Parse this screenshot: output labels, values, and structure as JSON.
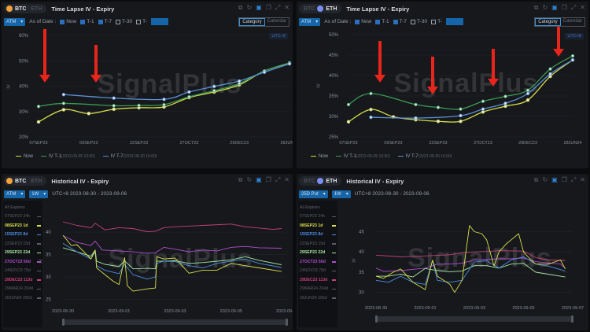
{
  "panels": [
    {
      "coin_active": "BTC",
      "coin_inactive": "ETH",
      "title": "Time Lapse IV - Expiry",
      "metric_select": "ATM",
      "as_of_label": "As of Date :",
      "checks": [
        {
          "label": "Now",
          "checked": true
        },
        {
          "label": "T-1",
          "checked": true
        },
        {
          "label": "T-7",
          "checked": true
        },
        {
          "label": "T-30",
          "checked": false
        },
        {
          "label": "T-",
          "checked": false
        }
      ],
      "view_toggle": [
        "Category",
        "Calendar"
      ],
      "timezone": "UTC+8",
      "y_axis_title": "IV",
      "watermark": "SignalPlus"
    },
    {
      "coin_active": "ETH",
      "coin_inactive": "BTC",
      "title": "Time Lapse IV - Expiry",
      "metric_select": "ATM",
      "as_of_label": "As of Date :",
      "checks": [
        {
          "label": "Now",
          "checked": true
        },
        {
          "label": "T-1",
          "checked": true
        },
        {
          "label": "T-7",
          "checked": true
        },
        {
          "label": "T-30",
          "checked": false
        },
        {
          "label": "T-",
          "checked": false
        }
      ],
      "view_toggle": [
        "Category",
        "Calendar"
      ],
      "timezone": "UTC+8",
      "y_axis_title": "IV",
      "watermark": "SignalPlus"
    },
    {
      "coin_active": "BTC",
      "coin_inactive": "ETH",
      "title": "Historical IV - Expiry",
      "metric_select": "ATM",
      "period_select": "1W",
      "range_label": "UTC+8 2023-08-30 - 2023-09-06",
      "expiries_header": "All Expiries",
      "y_axis_title": "IV",
      "watermark": "SignalPlus"
    },
    {
      "coin_active": "ETH",
      "coin_inactive": "BTC",
      "title": "Historical IV - Expiry",
      "metric_select": "25D Put",
      "period_select": "1W",
      "range_label": "UTC+8 2023-08-30 - 2023-09-06",
      "expiries_header": "All Expiries",
      "y_axis_title": "IV",
      "watermark": "SignalPlus"
    }
  ],
  "expiry_list": [
    {
      "label": "07SEP23 24h",
      "active": false,
      "color": "#5a5e66"
    },
    {
      "label": "08SEP23 1d",
      "active": true,
      "color": "#d9e04a"
    },
    {
      "label": "15SEP23 8d",
      "active": true,
      "color": "#4a8ee0"
    },
    {
      "label": "22SEP23 15d",
      "active": false,
      "color": "#5a5e66"
    },
    {
      "label": "29SEP23 22d",
      "active": true,
      "color": "#a8e6a0"
    },
    {
      "label": "27OCT23 50d",
      "active": true,
      "color": "#b04fd0"
    },
    {
      "label": "24NOV23 78d",
      "active": false,
      "color": "#5a5e66"
    },
    {
      "label": "29DEC23 113d",
      "active": true,
      "color": "#c8407a"
    },
    {
      "label": "29MAR24 204d",
      "active": false,
      "color": "#5a5e66"
    },
    {
      "label": "28JUN24 295d",
      "active": false,
      "color": "#5a5e66"
    }
  ],
  "chart_data": [
    {
      "type": "line",
      "title": "BTC Time Lapse IV - Expiry",
      "ylabel": "IV",
      "ylim": [
        20,
        60
      ],
      "yticks": [
        "20%",
        "30%",
        "40%",
        "50%",
        "60%"
      ],
      "ytick_values": [
        20,
        30,
        40,
        50,
        60
      ],
      "categories": [
        "07SEP23",
        "08SEP23",
        "09SEP23",
        "15SEP23",
        "22SEP23",
        "29SEP23",
        "27OCT23",
        "24NOV23",
        "29DEC23",
        "29MAR24",
        "28JUN24"
      ],
      "xtick_labels": [
        "07SEP23",
        "09SEP23",
        "22SEP23",
        "27OCT23",
        "29DEC23",
        "28JUN24"
      ],
      "series": [
        {
          "name": "Now",
          "note": "",
          "color": "#d6dc48",
          "values": [
            25.9,
            30.7,
            29.2,
            30.9,
            31.5,
            31.8,
            35.5,
            37.7,
            40.5,
            46.0,
            49.0
          ]
        },
        {
          "name": "IV T-1",
          "note": "(2023-09-05 16:00)",
          "color": "#3a9a55",
          "values": [
            32.0,
            33.2,
            null,
            32.3,
            32.4,
            32.7,
            35.8,
            38.2,
            41.0,
            46.0,
            49.2
          ]
        },
        {
          "name": "IV T-7",
          "note": "(2023-08-30 16:00)",
          "color": "#5b8fd6",
          "values": [
            null,
            36.7,
            null,
            35.3,
            null,
            34.8,
            37.7,
            39.9,
            42.0,
            45.5,
            48.8
          ]
        }
      ]
    },
    {
      "type": "line",
      "title": "ETH Time Lapse IV - Expiry",
      "ylabel": "IV",
      "ylim": [
        25,
        50
      ],
      "yticks": [
        "25%",
        "30%",
        "35%",
        "40%",
        "45%",
        "50%"
      ],
      "ytick_values": [
        25,
        30,
        35,
        40,
        45,
        50
      ],
      "categories": [
        "07SEP23",
        "08SEP23",
        "09SEP23",
        "15SEP23",
        "22SEP23",
        "29SEP23",
        "27OCT23",
        "24NOV23",
        "29DEC23",
        "29MAR24",
        "28JUN24"
      ],
      "xtick_labels": [
        "07SEP23",
        "09SEP23",
        "22SEP23",
        "27OCT23",
        "29DEC23",
        "28JUN24"
      ],
      "series": [
        {
          "name": "Now",
          "note": "",
          "color": "#d6dc48",
          "values": [
            28.7,
            31.7,
            29.9,
            29.2,
            28.8,
            28.8,
            31.1,
            32.5,
            34.0,
            39.8,
            43.8
          ]
        },
        {
          "name": "IV T-1",
          "note": "(2023-09-05 16:00)",
          "color": "#3a9a55",
          "values": [
            32.9,
            35.6,
            null,
            32.9,
            32.2,
            31.8,
            33.7,
            34.9,
            36.4,
            41.6,
            44.8
          ]
        },
        {
          "name": "IV T-7",
          "note": "(2023-08-30 16:00)",
          "color": "#5b8fd6",
          "values": [
            null,
            29.8,
            null,
            29.6,
            null,
            30.2,
            31.8,
            33.2,
            35.6,
            40.4,
            43.8
          ]
        }
      ]
    },
    {
      "type": "line",
      "title": "BTC Historical IV - Expiry",
      "ylabel": "IV",
      "ylim": [
        24,
        43
      ],
      "x_unit": "days since 2023-08-30",
      "xlim": [
        0,
        8
      ],
      "yticks": [
        "25",
        "30",
        "35",
        "40"
      ],
      "ytick_values": [
        25,
        30,
        35,
        40
      ],
      "xtick_labels": [
        "2023-08-30",
        "2023-09-01",
        "2023-09-03",
        "2023-09-05",
        "2023-09-07"
      ],
      "xtick_values": [
        0,
        2,
        4,
        6,
        8
      ],
      "series": [
        {
          "name": "29DEC23 113d",
          "color": "#c8407a",
          "x": [
            0,
            0.5,
            1,
            1.15,
            1.5,
            2,
            2.5,
            3,
            3.3,
            3.6,
            4,
            5,
            6,
            6.5,
            7.5,
            7.8
          ],
          "values": [
            42.3,
            41.5,
            41,
            42,
            40.5,
            41,
            40.8,
            40.1,
            40.2,
            41,
            41.2,
            41.5,
            41.8,
            41.2,
            40.6,
            40.8
          ]
        },
        {
          "name": "27OCT23 50d",
          "color": "#b04fd0",
          "x": [
            0,
            0.5,
            1,
            1.15,
            1.4,
            2,
            2.5,
            3,
            3.3,
            3.6,
            4,
            4.5,
            5,
            5.5,
            6,
            6.5,
            7,
            7.8
          ],
          "values": [
            39.2,
            37.7,
            37,
            38,
            36,
            35.8,
            35.6,
            35.3,
            35.4,
            36.6,
            36.2,
            35.6,
            36,
            35.8,
            36.6,
            36.8,
            36.5,
            36.4
          ]
        },
        {
          "name": "29SEP23 22d",
          "color": "#a8e6a0",
          "x": [
            0,
            0.5,
            1,
            1.15,
            1.2,
            1.5,
            2,
            2.2,
            2.5,
            3,
            3.3,
            3.35,
            3.6,
            4,
            4.5,
            5,
            5.5,
            6,
            6.5,
            7,
            7.8
          ],
          "values": [
            36.5,
            35.6,
            34.6,
            36,
            33.5,
            32.8,
            32.3,
            33.6,
            31.8,
            31.9,
            31.8,
            33.5,
            33.5,
            33.6,
            33,
            33.2,
            33.5,
            33.8,
            34.5,
            33.7,
            32.7
          ]
        },
        {
          "name": "15SEP23 8d",
          "color": "#4a8ee0",
          "x": [
            0,
            0.5,
            1,
            1.15,
            1.2,
            1.5,
            2,
            2.2,
            2.5,
            3,
            3.3,
            3.35,
            3.6,
            4,
            4.5,
            5,
            5.5,
            6,
            6.5,
            7,
            7.8
          ],
          "values": [
            37.5,
            35.6,
            34,
            35.6,
            32.5,
            31.5,
            30.7,
            32.8,
            30.5,
            29.5,
            30,
            33,
            33.5,
            33.4,
            32.5,
            32,
            33,
            33.5,
            34,
            33,
            32.1
          ]
        },
        {
          "name": "08SEP23 1d",
          "color": "#d9e04a",
          "x": [
            0,
            0.3,
            0.5,
            1,
            1.15,
            1.2,
            1.5,
            1.8,
            2,
            2.2,
            2.3,
            2.5,
            3,
            3.3,
            3.35,
            3.6,
            4,
            4.5,
            5,
            5.5,
            6,
            6.5,
            7,
            7.8
          ],
          "values": [
            39.3,
            37,
            37.2,
            34,
            36,
            32,
            30.5,
            29,
            28.3,
            34.3,
            28,
            26.8,
            27.3,
            27.5,
            34.5,
            34,
            34.2,
            30.8,
            31.5,
            31.5,
            33,
            32.5,
            32,
            31.2
          ]
        }
      ]
    },
    {
      "type": "line",
      "title": "ETH Historical IV - Expiry",
      "ylabel": "IV",
      "ylim": [
        28,
        48
      ],
      "x_unit": "days since 2023-08-30",
      "xlim": [
        0,
        8
      ],
      "yticks": [
        "30",
        "35",
        "40",
        "45"
      ],
      "ytick_values": [
        30,
        35,
        40,
        45
      ],
      "xtick_labels": [
        "2023-08-30",
        "2023-09-01",
        "2023-09-03",
        "2023-09-05",
        "2023-09-07"
      ],
      "xtick_values": [
        0,
        2,
        4,
        6,
        8
      ],
      "series": [
        {
          "name": "29DEC23 113d",
          "color": "#c8407a",
          "x": [
            0,
            1,
            2,
            3,
            3.5,
            4,
            4.5,
            5,
            6,
            6.5,
            7,
            7.7
          ],
          "values": [
            39.2,
            38.8,
            39,
            39.3,
            39.8,
            40,
            40.1,
            40.3,
            40.2,
            38.6,
            38,
            37.9
          ]
        },
        {
          "name": "27OCT23 50d",
          "color": "#b04fd0",
          "x": [
            0,
            0.3,
            1,
            2,
            2.5,
            3,
            3.5,
            4,
            5,
            5.5,
            6,
            6.5,
            7.5,
            7.7
          ],
          "values": [
            36,
            35.2,
            35.4,
            36,
            37,
            37,
            37.2,
            38,
            38.3,
            38.3,
            38.5,
            37.6,
            37,
            36
          ]
        },
        {
          "name": "29SEP23 22d",
          "color": "#a8e6a0",
          "x": [
            0,
            0.5,
            1,
            1.5,
            2,
            2.4,
            3,
            3.5,
            4,
            4.5,
            5,
            5.5,
            6,
            6.5,
            7,
            7.7
          ],
          "values": [
            34,
            34,
            34.5,
            33.8,
            35.9,
            35.5,
            35.1,
            35.3,
            36.6,
            36.6,
            36,
            37,
            37.2,
            35,
            34.5,
            33.8
          ]
        },
        {
          "name": "15SEP23 8d",
          "color": "#4a8ee0",
          "x": [
            0,
            0.5,
            1,
            1.5,
            2,
            2.3,
            2.5,
            3,
            3.5,
            4,
            4.5,
            5,
            5.5,
            6,
            6.5,
            7,
            7.7
          ],
          "values": [
            33,
            32.5,
            34,
            32.5,
            32,
            37.8,
            33,
            32.5,
            33,
            37.5,
            37.8,
            36,
            38,
            38.8,
            37,
            36.5,
            35.3
          ]
        },
        {
          "name": "08SEP23 1d",
          "color": "#d9e04a",
          "x": [
            0,
            0.3,
            0.7,
            1,
            1.5,
            2,
            2.3,
            2.5,
            3,
            3.2,
            3.5,
            3.8,
            4,
            4.3,
            4.5,
            4.8,
            5,
            5.3,
            5.5,
            5.8,
            6,
            6.3,
            6.5,
            7,
            7.5,
            7.7
          ],
          "values": [
            34,
            33.5,
            35,
            35.8,
            32.5,
            30.7,
            38,
            34,
            32,
            30,
            33,
            46.5,
            45,
            44.5,
            43,
            36.5,
            40,
            42,
            43,
            44.5,
            40,
            38,
            37,
            37,
            38,
            35.8
          ]
        }
      ]
    }
  ]
}
